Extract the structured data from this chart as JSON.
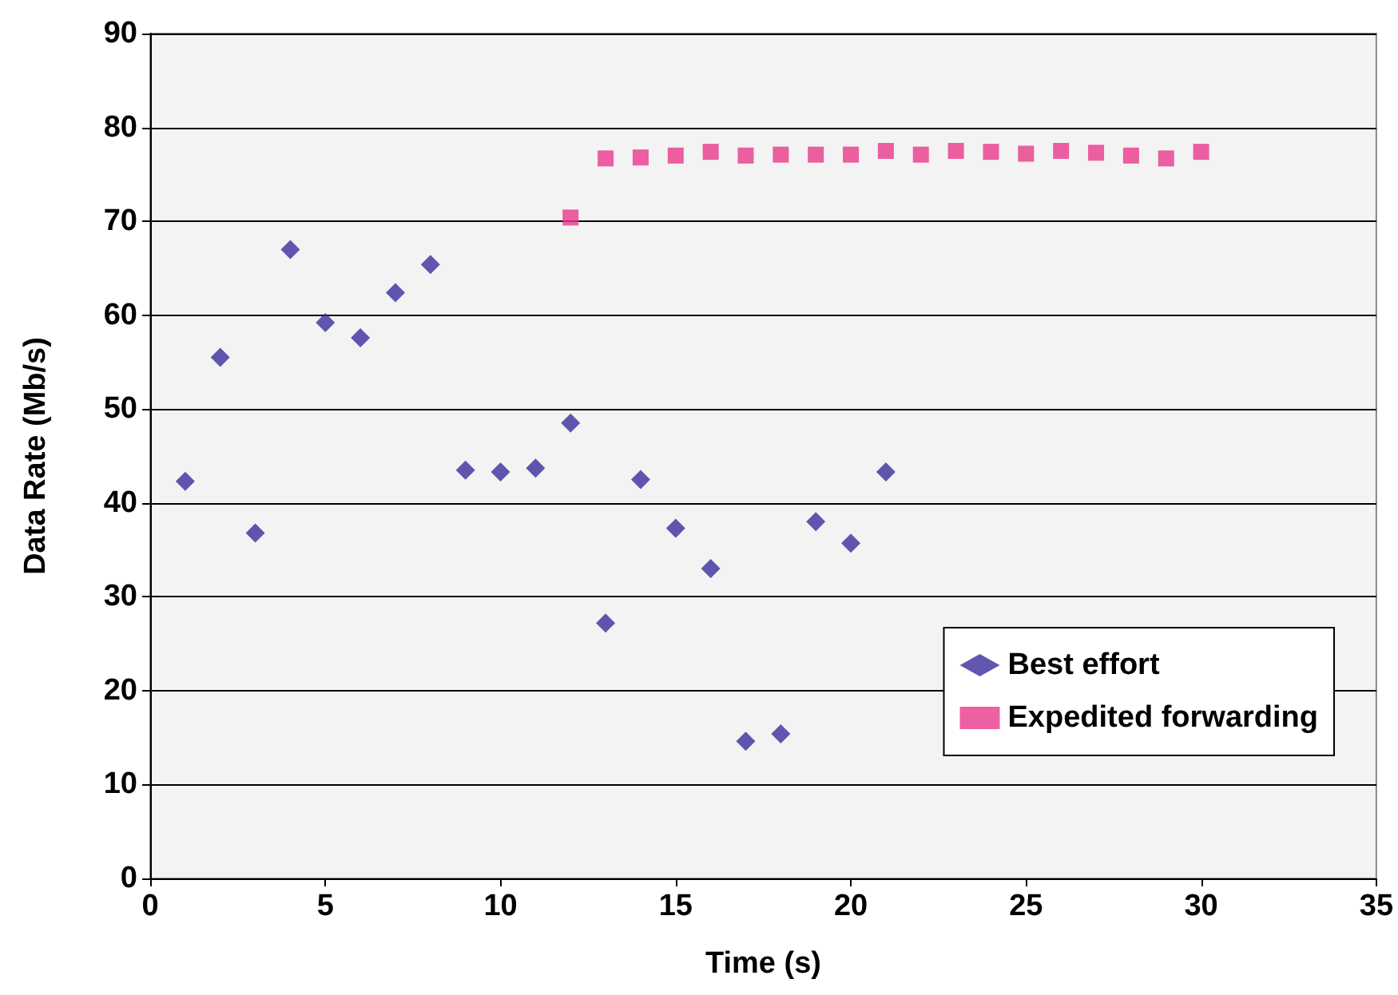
{
  "chart_data": {
    "type": "scatter",
    "xlabel": "Time (s)",
    "ylabel": "Data Rate (Mb/s)",
    "xlim": [
      0,
      35
    ],
    "xticks": [
      0,
      5,
      10,
      15,
      20,
      25,
      30,
      35
    ],
    "ylim": [
      0,
      90
    ],
    "yticks": [
      0,
      10,
      20,
      30,
      40,
      50,
      60,
      70,
      80,
      90
    ],
    "grid": "y",
    "legend": "bottom right",
    "series": [
      {
        "name": "Best effort",
        "color": "#3a2d9c",
        "marker": "diamond",
        "x": [
          1,
          2,
          3,
          4,
          5,
          6,
          7,
          8,
          9,
          10,
          11,
          12,
          13,
          14,
          15,
          16,
          17,
          18,
          19,
          20,
          21
        ],
        "values": [
          42.3,
          55.5,
          36.8,
          67,
          59.2,
          57.6,
          62.4,
          65.4,
          43.5,
          43.3,
          43.7,
          48.5,
          27.2,
          42.5,
          37.3,
          33,
          14.6,
          15.4,
          38,
          35.7,
          43.3
        ]
      },
      {
        "name": "Expedited forwarding",
        "color": "#e8388a",
        "marker": "square",
        "x": [
          12,
          13,
          14,
          15,
          16,
          17,
          18,
          19,
          20,
          21,
          22,
          23,
          24,
          25,
          26,
          27,
          28,
          29,
          30
        ],
        "values": [
          70.4,
          76.7,
          76.8,
          77,
          77.4,
          77,
          77.1,
          77.1,
          77.1,
          77.5,
          77.1,
          77.5,
          77.4,
          77.2,
          77.5,
          77.3,
          77,
          76.7,
          77.4
        ]
      }
    ]
  }
}
